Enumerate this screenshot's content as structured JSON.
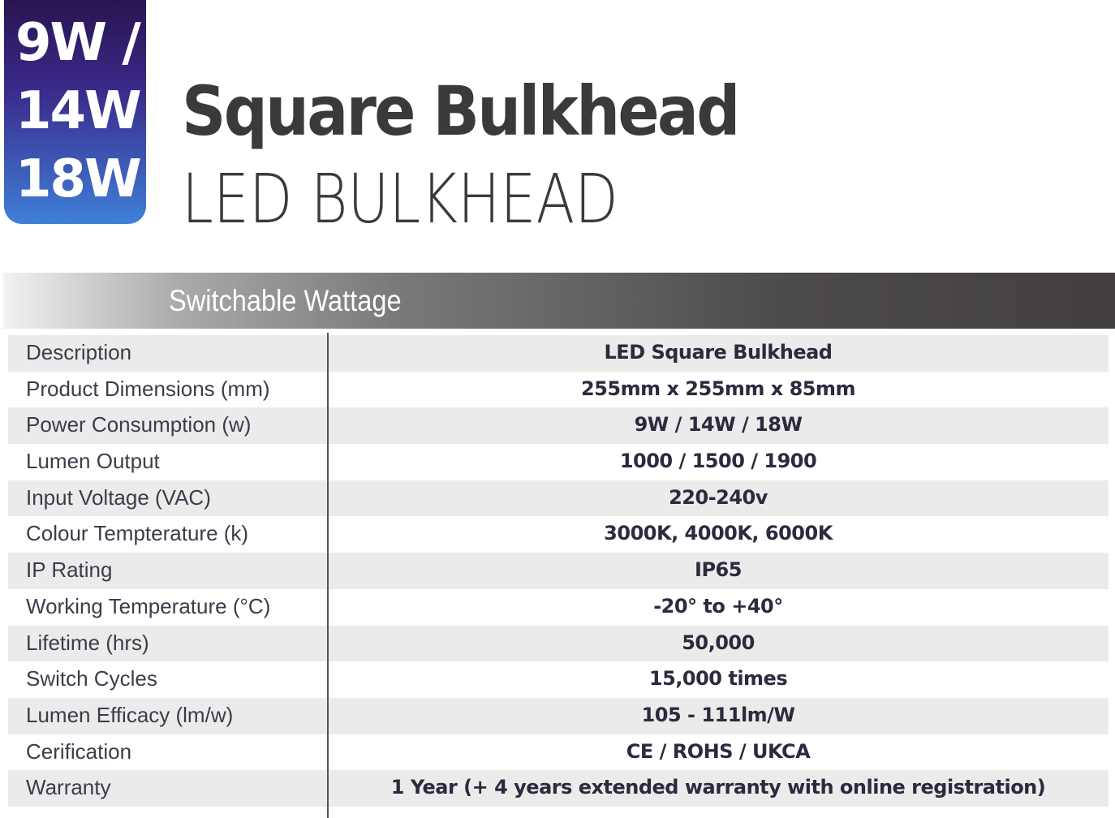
{
  "badge": {
    "lines": [
      "9W /",
      "14W",
      "18W"
    ]
  },
  "header": {
    "title": "Square Bulkhead",
    "subtitle": "LED BULKHEAD"
  },
  "section": {
    "title": "Switchable Wattage"
  },
  "table": {
    "rows": [
      [
        "Description",
        "LED Square Bulkhead"
      ],
      [
        "Product Dimensions (mm)",
        "255mm x 255mm x 85mm"
      ],
      [
        "Power Consumption (w)",
        "9W / 14W / 18W"
      ],
      [
        "Lumen Output",
        "1000 / 1500 / 1900"
      ],
      [
        "Input Voltage (VAC)",
        "220-240v"
      ],
      [
        "Colour Tempterature (k)",
        "3000K, 4000K, 6000K"
      ],
      [
        "IP Rating",
        "IP65"
      ],
      [
        "Working Temperature (°C)",
        "-20° to +40°"
      ],
      [
        "Lifetime (hrs)",
        "50,000"
      ],
      [
        "Switch Cycles",
        "15,000 times"
      ],
      [
        "Lumen Efficacy (lm/w)",
        "105 - 111lm/W"
      ],
      [
        "Cerification",
        "CE / ROHS / UKCA"
      ],
      [
        "Warranty",
        "1 Year (+ 4 years extended warranty with online registration)"
      ]
    ]
  }
}
